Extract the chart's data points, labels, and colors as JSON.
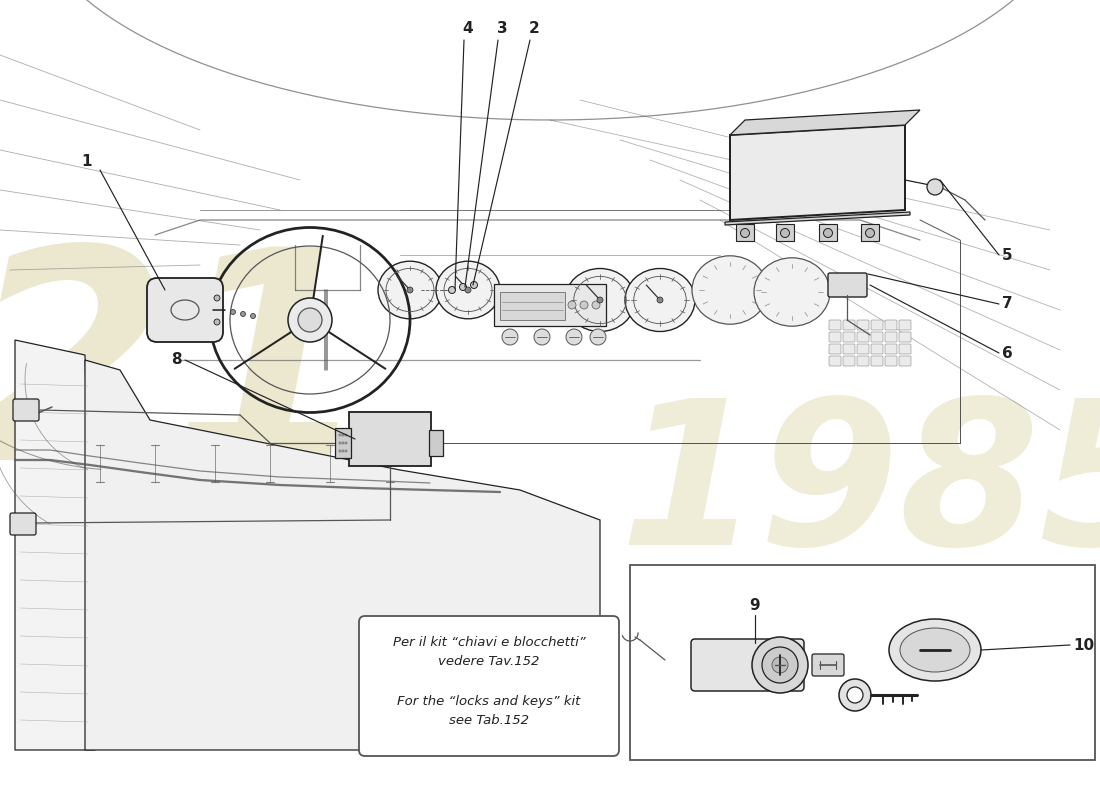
{
  "bg_color": "#ffffff",
  "lc": "#222222",
  "lc_light": "#888888",
  "lc_mid": "#555555",
  "wm_color": "#ddd5a8",
  "wm_alpha": 0.55,
  "note_it": "Per il kit “chiavi e blocchetti”\nvedere Tav.152",
  "note_en": "For the “locks and keys” kit\nsee Tab.152",
  "label_fs": 11,
  "callout_lw": 0.85,
  "sketch_lw": 0.9,
  "main_lw": 1.1
}
